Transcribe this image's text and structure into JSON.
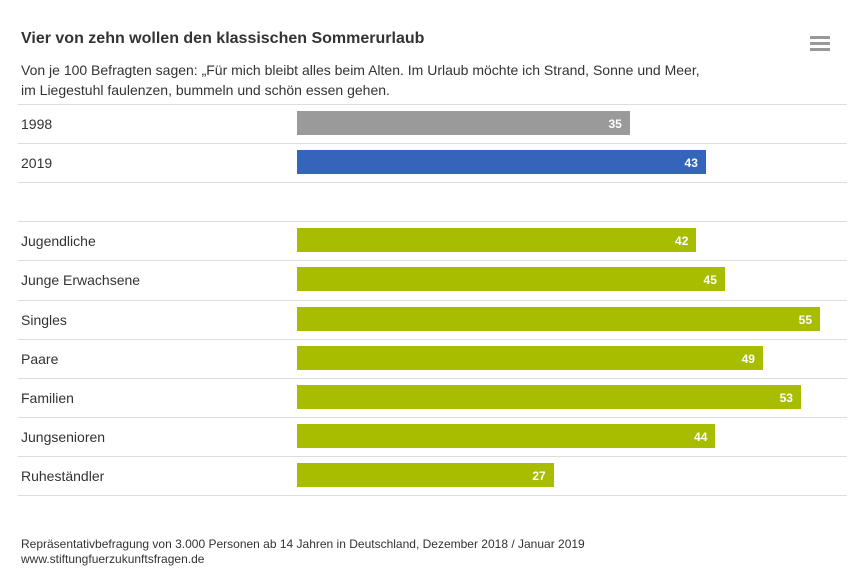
{
  "chart_data": {
    "type": "bar",
    "orientation": "horizontal",
    "title": "Vier von zehn wollen den klassischen Sommerurlaub",
    "subtitle_lines": [
      "Von je 100 Befragten sagen: „Für mich bleibt alles beim Alten. Im Urlaub möchte ich Strand, Sonne und Meer,",
      "im Liegestuhl faulenzen, bummeln und schön essen gehen."
    ],
    "xlim": [
      0,
      55
    ],
    "grid": false,
    "data_labels": true,
    "groups": [
      {
        "categories": [
          "1998",
          "2019"
        ],
        "values": [
          35,
          43
        ],
        "colors": [
          "#9a9a9a",
          "#3366bb"
        ]
      },
      {
        "categories": [
          "Jugendliche",
          "Junge Erwachsene",
          "Singles",
          "Paare",
          "Familien",
          "Jungsenioren",
          "Ruheständler"
        ],
        "values": [
          42,
          45,
          55,
          49,
          53,
          44,
          27
        ],
        "colors": [
          "#a8bd00",
          "#a8bd00",
          "#a8bd00",
          "#a8bd00",
          "#a8bd00",
          "#a8bd00",
          "#a8bd00"
        ]
      }
    ]
  },
  "menu_icon": "hamburger-menu-icon",
  "footer": {
    "source": "Repräsentativbefragung von 3.000 Personen ab 14 Jahren in Deutschland, Dezember 2018 / Januar 2019",
    "url": "www.stiftungfuerzukunftsfragen.de"
  }
}
